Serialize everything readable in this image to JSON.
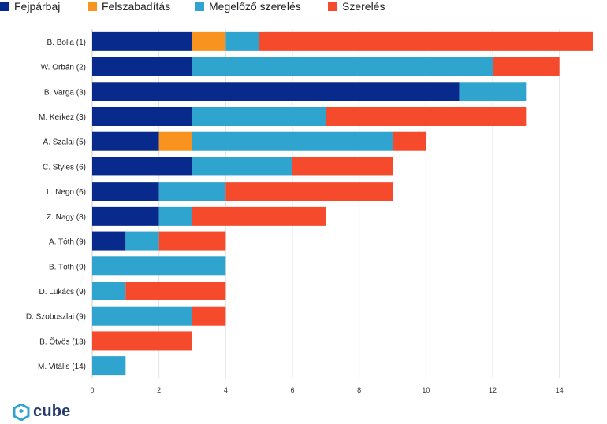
{
  "chart_data": {
    "type": "bar",
    "orientation": "horizontal",
    "stacked": true,
    "categories": [
      "B. Bolla (1)",
      "W. Orbán (2)",
      "B. Varga (3)",
      "M. Kerkez (3)",
      "A. Szalai (5)",
      "C. Styles (6)",
      "L. Nego (6)",
      "Z. Nagy (8)",
      "A. Tóth (9)",
      "B. Tóth (9)",
      "D. Lukács (9)",
      "D. Szoboszlai (9)",
      "B. Ötvös (13)",
      "M. Vitális (14)"
    ],
    "series": [
      {
        "name": "Fejpárbaj",
        "color": "#072a8c",
        "values": [
          3,
          3,
          11,
          3,
          2,
          3,
          2,
          2,
          1,
          0,
          0,
          0,
          0,
          0
        ]
      },
      {
        "name": "Felszabadítás",
        "color": "#f7931e",
        "values": [
          1,
          0,
          0,
          0,
          1,
          0,
          0,
          0,
          0,
          0,
          0,
          0,
          0,
          0
        ]
      },
      {
        "name": "Megelőző szerelés",
        "color": "#2fa4cf",
        "values": [
          1,
          9,
          2,
          4,
          6,
          3,
          2,
          1,
          1,
          4,
          1,
          3,
          0,
          1
        ]
      },
      {
        "name": "Szerelés",
        "color": "#f54a2c",
        "values": [
          10,
          2,
          0,
          6,
          1,
          3,
          5,
          4,
          2,
          0,
          3,
          1,
          3,
          0
        ]
      }
    ],
    "xticks": [
      0,
      2,
      4,
      6,
      8,
      10,
      12,
      14
    ],
    "xlim": [
      0,
      15
    ],
    "grid": true,
    "legend_position": "top-left"
  },
  "logo": {
    "text": "cube",
    "color": "#243b6b",
    "icon": "cube-logo-icon"
  }
}
